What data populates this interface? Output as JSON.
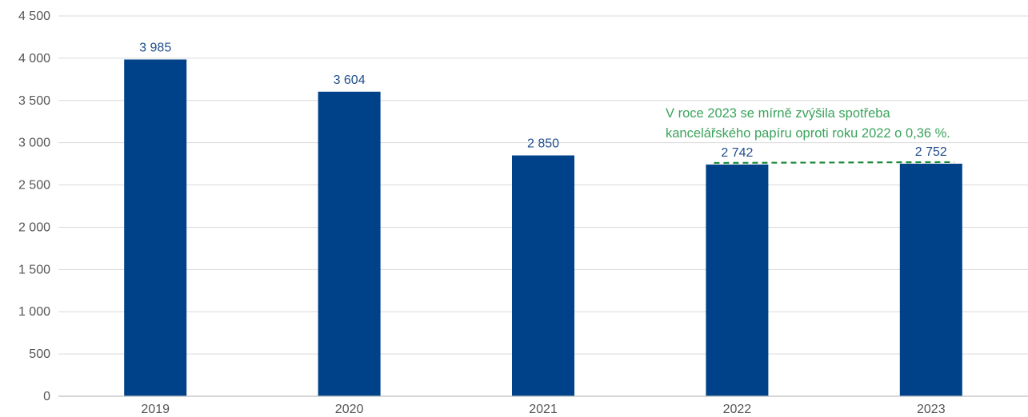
{
  "chart_data": {
    "type": "bar",
    "categories": [
      "2019",
      "2020",
      "2021",
      "2022",
      "2023"
    ],
    "values": [
      3985,
      3604,
      2850,
      2742,
      2752
    ],
    "value_labels": [
      "3 985",
      "3 604",
      "2 850",
      "2 742",
      "2 752"
    ],
    "title": "",
    "xlabel": "",
    "ylabel": "",
    "ylim": [
      0,
      4500
    ],
    "y_ticks": [
      0,
      500,
      1000,
      1500,
      2000,
      2500,
      3000,
      3500,
      4000,
      4500
    ],
    "y_tick_labels": [
      "0",
      "500",
      "1 000",
      "1 500",
      "2 000",
      "2 500",
      "3 000",
      "3 500",
      "4 000",
      "4 500"
    ],
    "grid": true,
    "legend": "none",
    "annotation": {
      "lines": [
        "V roce 2023 se mírně zvýšila spotřeba",
        "kancelářského papíru oproti roku 2022 o 0,36 %."
      ],
      "trend_from": "2022",
      "trend_to": "2023"
    },
    "colors": {
      "bar": "#004289",
      "data_label": "#1f4e8c",
      "annotation": "#3aa35b",
      "trend_line": "#1e8a3c",
      "grid": "#d9d9d9",
      "axis": "#bfbfbf",
      "tick_label": "#555555"
    }
  }
}
